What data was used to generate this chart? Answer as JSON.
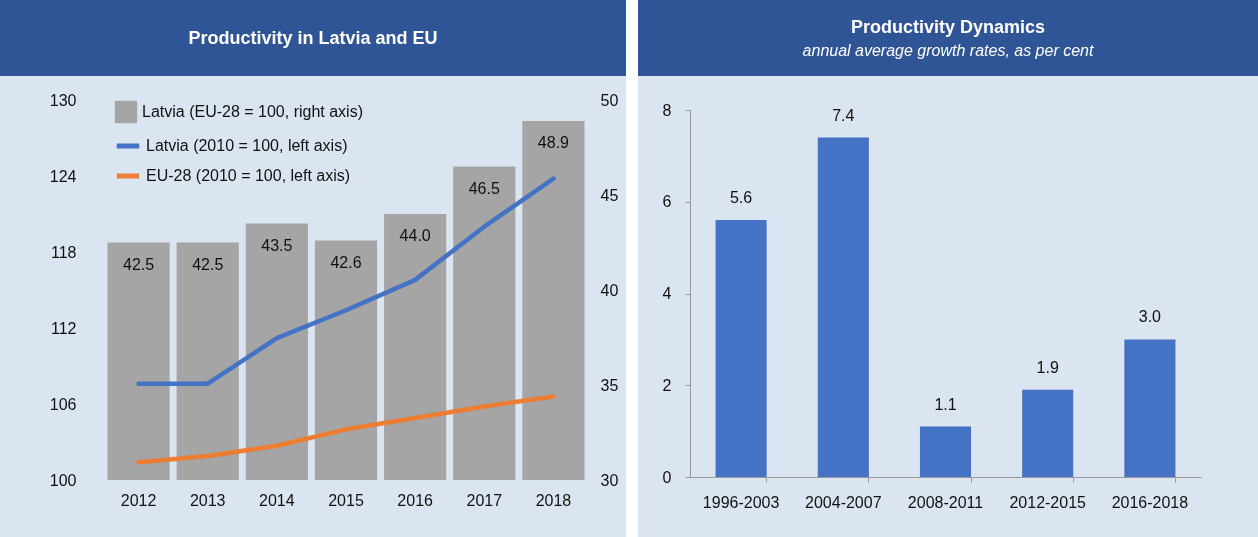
{
  "chart_data": [
    {
      "type": "line",
      "title": "Productivity in Latvia and EU",
      "categories": [
        "2012",
        "2013",
        "2014",
        "2015",
        "2016",
        "2017",
        "2018"
      ],
      "series": [
        {
          "name": "Latvia (EU-28 = 100, right axis)",
          "type": "bar",
          "axis": "y2",
          "color": "#a5a5a5",
          "values": [
            42.5,
            42.5,
            43.5,
            42.6,
            44.0,
            46.5,
            48.9
          ],
          "value_labels": [
            "42.5",
            "42.5",
            "43.5",
            "42.6",
            "44.0",
            "46.5",
            "48.9"
          ]
        },
        {
          "name": "Latvia (2010 = 100, left axis)",
          "color": "#4472c4",
          "values": [
            107.6,
            107.6,
            111.2,
            113.4,
            115.8,
            120.0,
            123.8
          ]
        },
        {
          "name": "EU-28 (2010 = 100, left axis)",
          "color": "#ed7d31",
          "values": [
            101.4,
            101.9,
            102.7,
            104.0,
            104.9,
            105.8,
            106.6
          ]
        }
      ],
      "ylim": [
        100,
        130
      ],
      "yticks": [
        100,
        106,
        112,
        118,
        124,
        130
      ],
      "y2lim": [
        30,
        50
      ],
      "y2ticks": [
        30,
        35,
        40,
        45,
        50
      ],
      "legend": "top left"
    },
    {
      "type": "bar",
      "title": "Productivity Dynamics",
      "subtitle": "annual average growth rates, as per cent",
      "categories": [
        "1996-2003",
        "2004-2007",
        "2008-2011",
        "2012-2015",
        "2016-2018"
      ],
      "values": [
        5.6,
        7.4,
        1.1,
        1.9,
        3.0
      ],
      "value_labels": [
        "5.6",
        "7.4",
        "1.1",
        "1.9",
        "3.0"
      ],
      "color": "#4472c4",
      "ylim": [
        0,
        8
      ],
      "yticks": [
        0,
        2,
        4,
        6,
        8
      ]
    }
  ]
}
